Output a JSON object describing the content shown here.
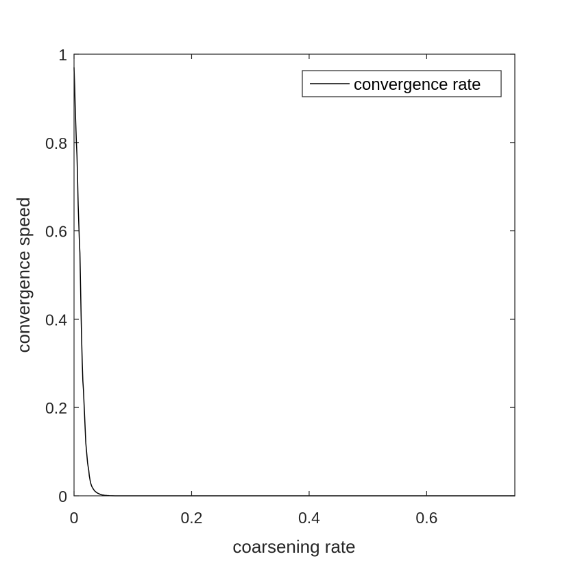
{
  "chart_data": {
    "type": "line",
    "title": "",
    "xlabel": "coarsening rate",
    "ylabel": "convergence speed",
    "xlim": [
      0,
      0.75
    ],
    "ylim": [
      0,
      1
    ],
    "xticks": [
      0,
      0.2,
      0.4,
      0.6
    ],
    "xtick_labels": [
      "0",
      "0.2",
      "0.4",
      "0.6"
    ],
    "yticks": [
      0,
      0.2,
      0.4,
      0.6,
      0.8,
      1
    ],
    "ytick_labels": [
      "0",
      "0.2",
      "0.4",
      "0.6",
      "0.8",
      "1"
    ],
    "grid": false,
    "legend_position": "top-right",
    "series": [
      {
        "name": "convergence rate",
        "color": "#000000",
        "x": [
          0.0,
          0.001,
          0.002,
          0.003,
          0.004,
          0.005,
          0.006,
          0.007,
          0.008,
          0.009,
          0.01,
          0.011,
          0.012,
          0.013,
          0.014,
          0.015,
          0.016,
          0.017,
          0.018,
          0.019,
          0.02,
          0.021,
          0.022,
          0.023,
          0.024,
          0.025,
          0.026,
          0.028,
          0.03,
          0.032,
          0.034,
          0.036,
          0.038,
          0.04,
          0.042,
          0.045,
          0.048,
          0.052,
          0.056,
          0.06,
          0.065,
          0.07,
          0.08,
          0.09,
          0.1,
          0.15,
          0.2,
          0.3,
          0.4,
          0.5,
          0.6,
          0.7,
          0.75
        ],
        "y": [
          0.97,
          0.93,
          0.88,
          0.84,
          0.8,
          0.77,
          0.72,
          0.66,
          0.62,
          0.58,
          0.55,
          0.48,
          0.41,
          0.35,
          0.3,
          0.26,
          0.24,
          0.21,
          0.18,
          0.15,
          0.12,
          0.105,
          0.09,
          0.075,
          0.066,
          0.058,
          0.045,
          0.03,
          0.022,
          0.017,
          0.013,
          0.01,
          0.008,
          0.006,
          0.005,
          0.003,
          0.002,
          0.0012,
          0.0007,
          0.0004,
          0.0002,
          0.0001,
          0.0,
          0.0,
          0.0,
          0.0,
          0.0,
          0.0,
          0.0,
          0.0,
          0.0,
          0.0,
          0.0
        ]
      }
    ]
  }
}
